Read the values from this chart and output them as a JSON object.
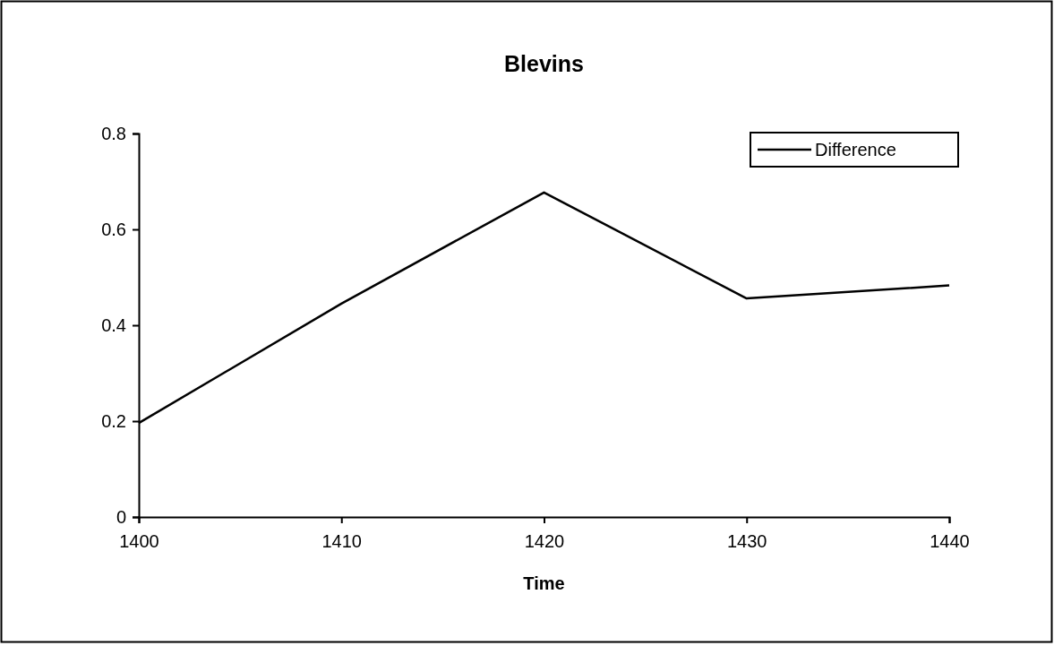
{
  "chart_data": {
    "type": "line",
    "title": "Blevins",
    "xlabel": "Time",
    "x": [
      1400,
      1410,
      1420,
      1430,
      1440
    ],
    "series": [
      {
        "name": "Difference",
        "color": "#000000",
        "values": [
          0.196,
          0.445,
          0.677,
          0.456,
          0.483
        ]
      }
    ],
    "xlim": [
      1400,
      1440
    ],
    "xticks": [
      1400,
      1410,
      1420,
      1430,
      1440
    ],
    "ylim": [
      0,
      0.8
    ],
    "yticks": [
      0,
      0.2,
      0.4,
      0.6,
      0.8
    ],
    "legend": "top right",
    "marker": "none",
    "line_style": "solid",
    "grid": false
  }
}
